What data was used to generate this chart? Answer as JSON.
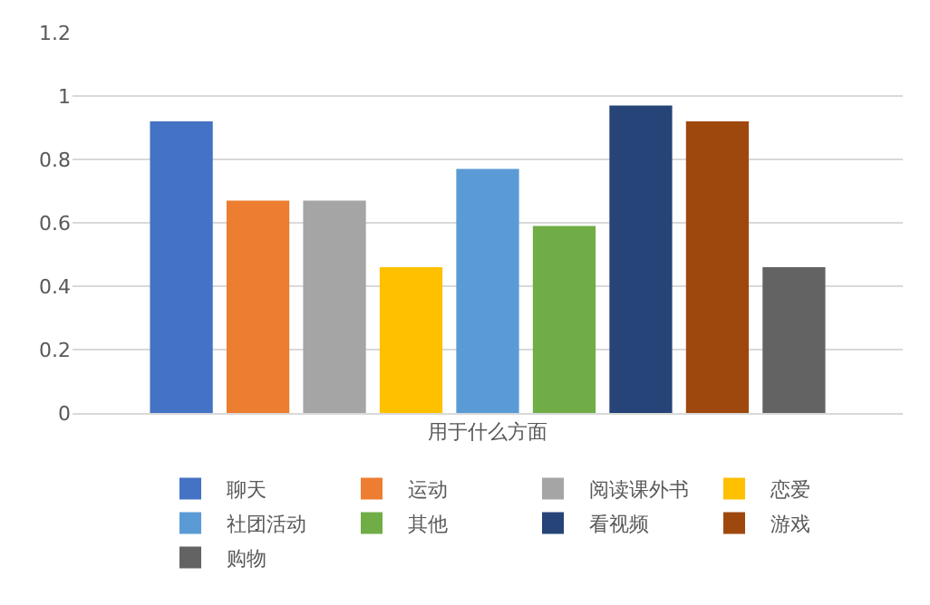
{
  "chart_data": {
    "type": "bar",
    "categories": [
      "用于什么方面"
    ],
    "series": [
      {
        "name": "聊天",
        "color": "#4472c4",
        "values": [
          0.92
        ]
      },
      {
        "name": "运动",
        "color": "#ed7d31",
        "values": [
          0.67
        ]
      },
      {
        "name": "阅读课外书",
        "color": "#a5a5a5",
        "values": [
          0.67
        ]
      },
      {
        "name": "恋爱",
        "color": "#ffc000",
        "values": [
          0.46
        ]
      },
      {
        "name": "社团活动",
        "color": "#5b9bd5",
        "values": [
          0.77
        ]
      },
      {
        "name": "其他",
        "color": "#70ad47",
        "values": [
          0.59
        ]
      },
      {
        "name": "看视频",
        "color": "#264478",
        "values": [
          0.97
        ]
      },
      {
        "name": "游戏",
        "color": "#9e480e",
        "values": [
          0.92
        ]
      },
      {
        "name": "购物",
        "color": "#636363",
        "values": [
          0.46
        ]
      }
    ],
    "ylim": [
      0,
      1.2
    ],
    "yticks": [
      0,
      0.2,
      0.4,
      0.6,
      0.8,
      1,
      1.2
    ],
    "grid": "y",
    "legend": "bottom"
  }
}
